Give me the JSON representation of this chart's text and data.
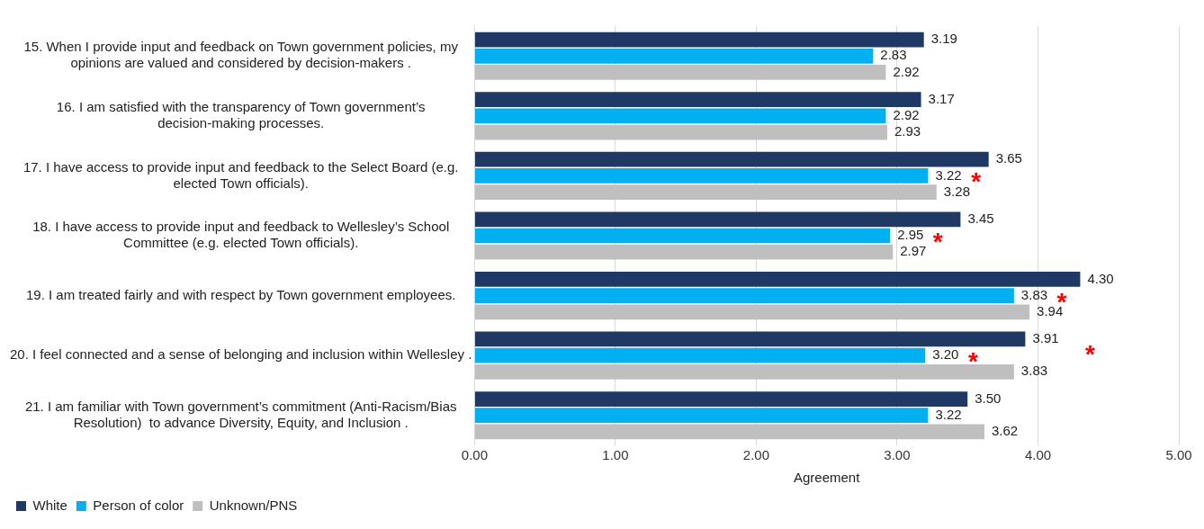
{
  "chart_data": {
    "type": "bar",
    "orientation": "horizontal",
    "categories": [
      "15. When I provide input and feedback on Town government policies, my opinions are valued and considered by decision-makers .",
      "16. I am satisfied with the transparency of Town government’s decision-making processes.",
      "17. I have access to provide input and feedback to the Select Board (e.g. elected Town officials).",
      "18. I have access to provide input and feedback to Wellesley’s School Committee (e.g. elected Town officials).",
      "19. I am treated fairly and with respect by Town government employees.",
      "20. I feel connected and a sense of belonging and inclusion within Wellesley .",
      "21. I am familiar with Town government’s commitment (Anti-Racism/Bias Resolution)  to advance Diversity, Equity, and Inclusion ."
    ],
    "series": [
      {
        "name": "White",
        "color": "#1f3864",
        "values": [
          3.19,
          3.17,
          3.65,
          3.45,
          4.3,
          3.91,
          3.5
        ],
        "value_labels": [
          "3.19",
          "3.17",
          "3.65",
          "3.45",
          "4.30",
          "3.91",
          "3.50"
        ]
      },
      {
        "name": "Person of color",
        "color": "#00b0f0",
        "values": [
          2.83,
          2.92,
          3.22,
          2.95,
          3.83,
          3.2,
          3.22
        ],
        "value_labels": [
          "2.83",
          "2.92",
          "3.22",
          "2.95",
          "3.83",
          "3.20",
          "3.22"
        ]
      },
      {
        "name": "Unknown/PNS",
        "color": "#bfbfbf",
        "values": [
          2.92,
          2.93,
          3.28,
          2.97,
          3.94,
          3.83,
          3.62
        ],
        "value_labels": [
          "2.92",
          "2.93",
          "3.28",
          "2.97",
          "3.94",
          "3.83",
          "3.62"
        ]
      }
    ],
    "xlabel": "Agreement",
    "xlim": [
      0,
      5
    ],
    "xticks": [
      {
        "value": 0,
        "label": "0.00"
      },
      {
        "value": 1,
        "label": "1.00"
      },
      {
        "value": 2,
        "label": "2.00"
      },
      {
        "value": 3,
        "label": "3.00"
      },
      {
        "value": 4,
        "label": "4.00"
      },
      {
        "value": 5,
        "label": "5.00"
      }
    ],
    "grid": "x",
    "legend": "bottom left",
    "annotations": [
      {
        "text": "*",
        "x": 3.22,
        "y": "17. I have access to provide input and feedback to the Select Board (e.g. elected Town officials)."
      },
      {
        "text": "*",
        "x": 2.95,
        "y": "18. I have access to provide input and feedback to Wellesley’s School Committee (e.g. elected Town officials)."
      },
      {
        "text": "*",
        "x": 3.83,
        "y": "19. I am treated fairly and with respect by Town government employees."
      },
      {
        "text": "*",
        "x": 3.2,
        "y": "20. I feel connected and a sense of belonging and inclusion within Wellesley ."
      },
      "*"
    ]
  }
}
